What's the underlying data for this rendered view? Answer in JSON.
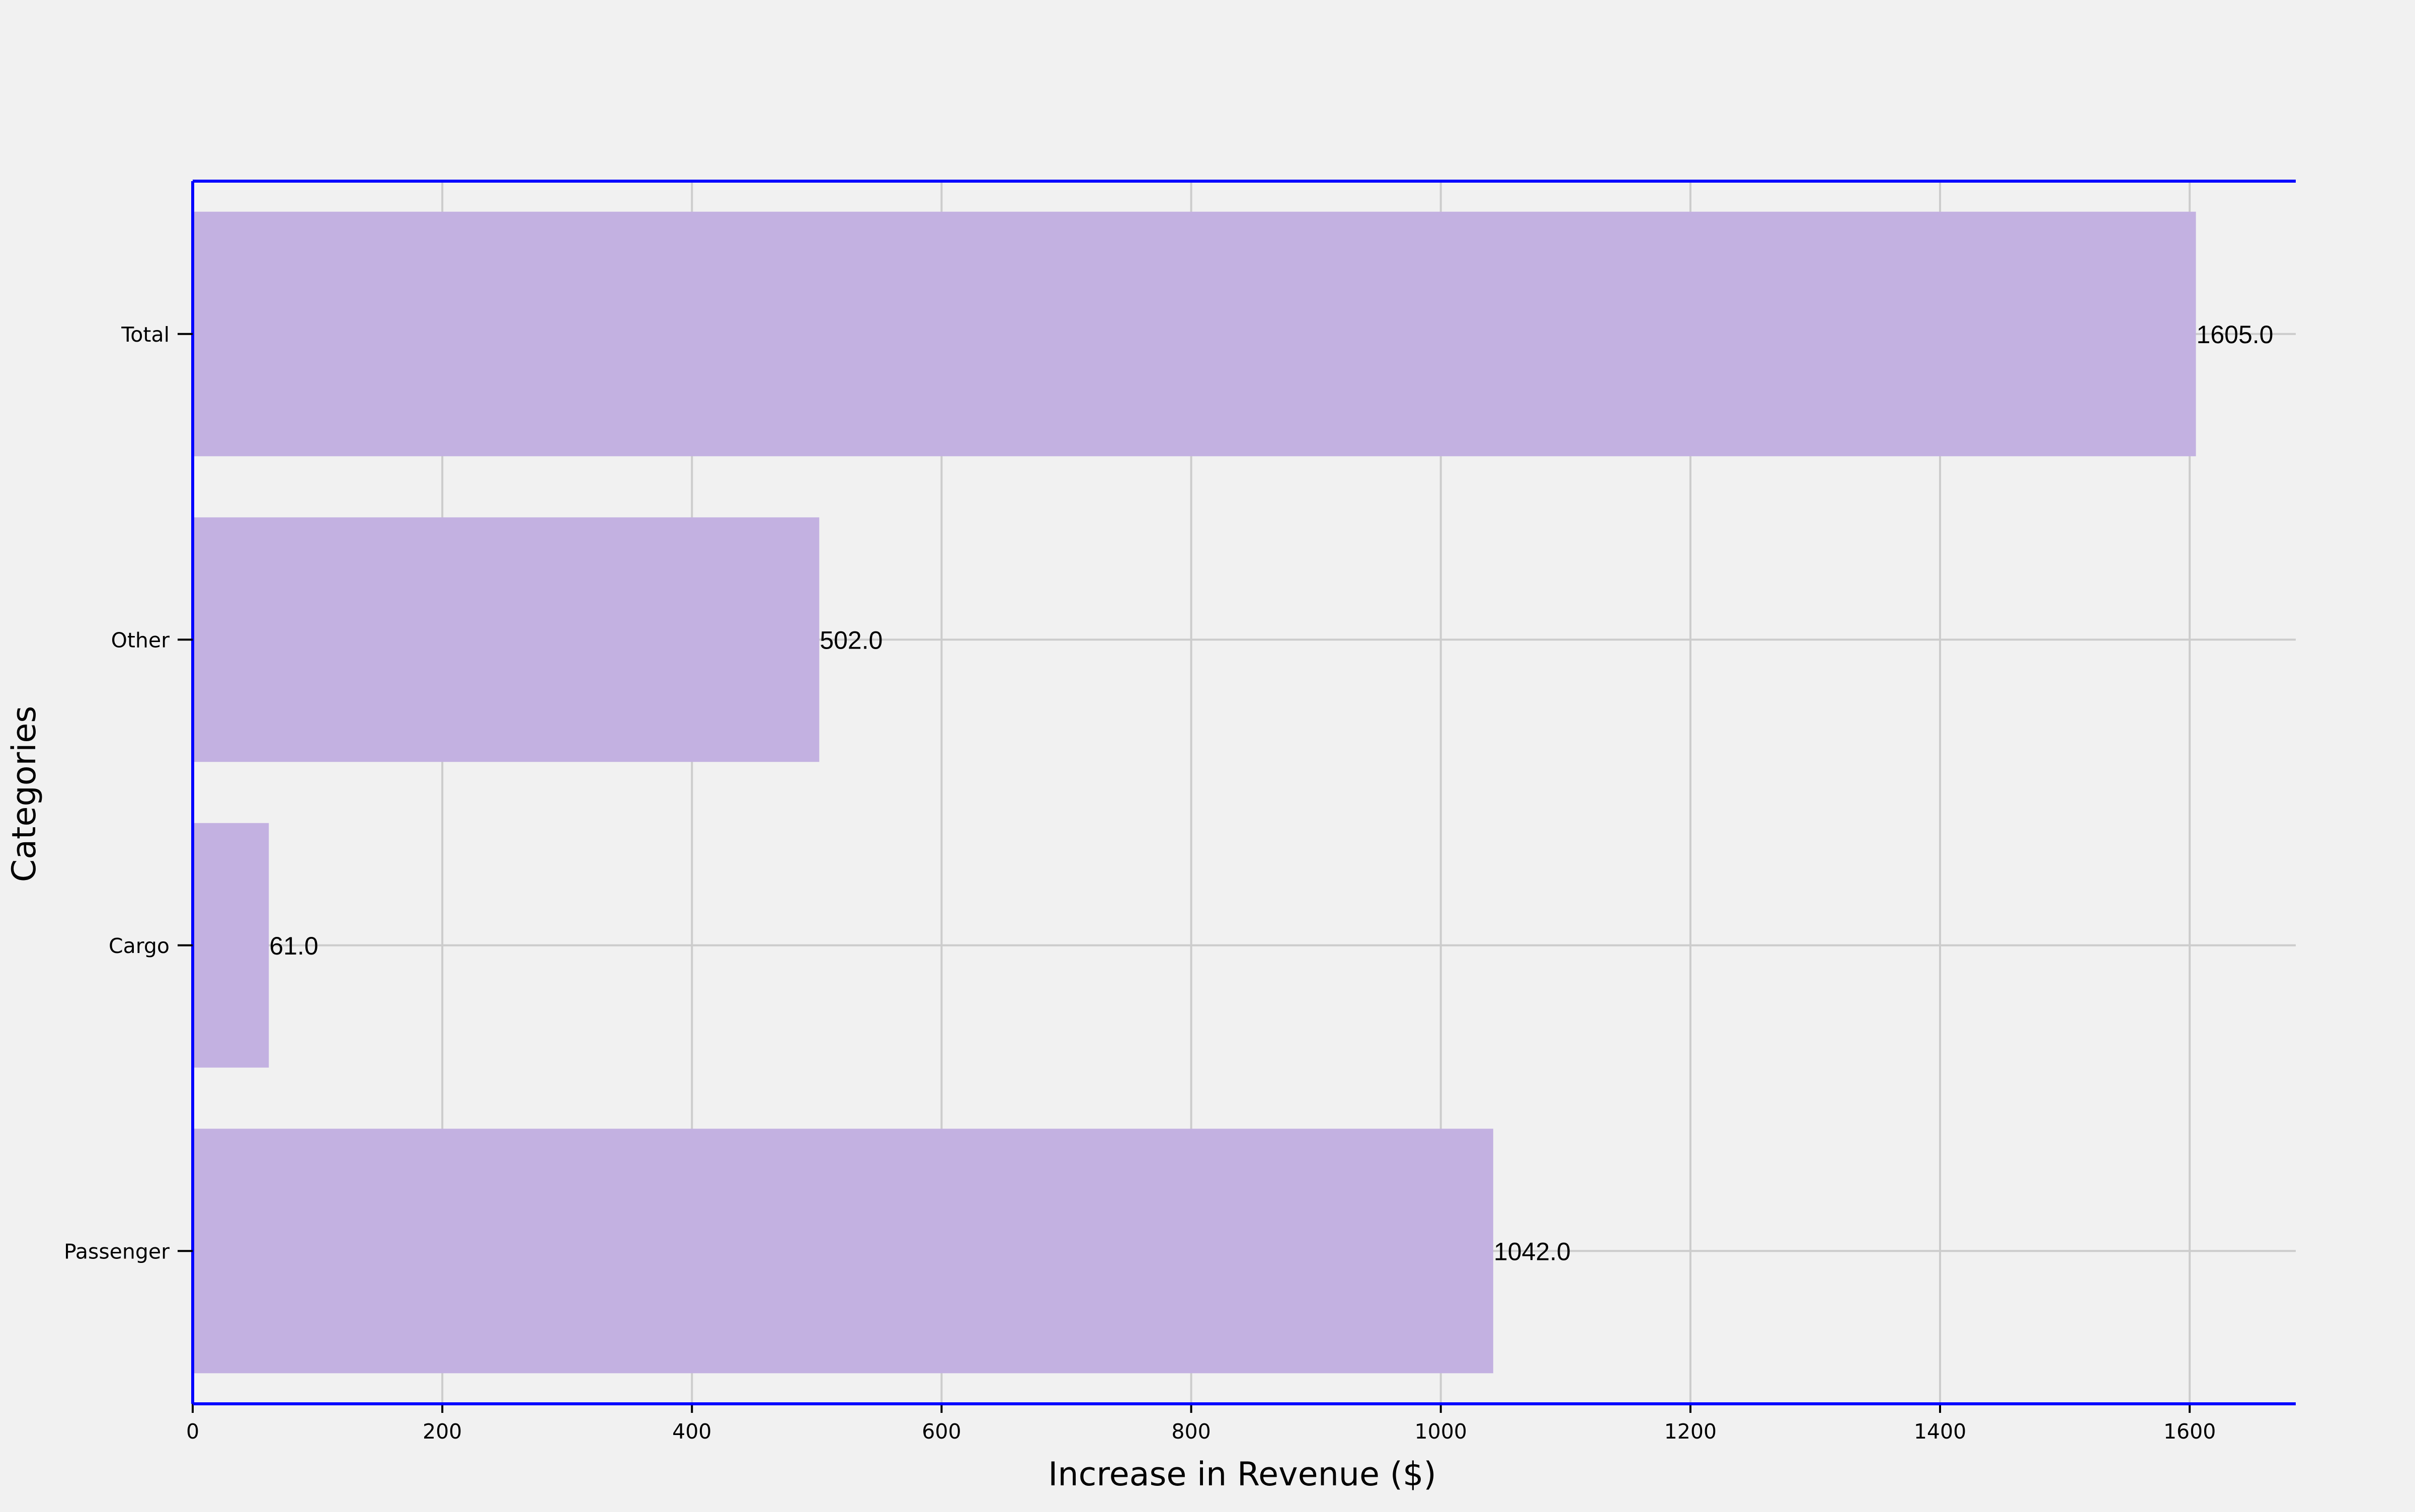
{
  "chart_data": {
    "type": "bar",
    "orientation": "horizontal",
    "title": "",
    "categories": [
      "Passenger",
      "Cargo",
      "Other",
      "Total"
    ],
    "values": [
      1042.0,
      61.0,
      502.0,
      1605.0
    ],
    "value_labels": [
      "1042.0",
      "61.0",
      "502.0",
      "1605.0"
    ],
    "xlabel": "Increase in Revenue ($)",
    "ylabel": "Categories",
    "xlim": [
      0,
      1685
    ],
    "xticks": [
      0,
      200,
      400,
      600,
      800,
      1000,
      1200,
      1400,
      1600
    ],
    "grid": true,
    "legend": "none",
    "colors": {
      "bar": "#c3b1e1",
      "axis": "#0000ff",
      "grid": "#cccccc",
      "background": "#f1f1f1",
      "text": "#000000"
    }
  }
}
